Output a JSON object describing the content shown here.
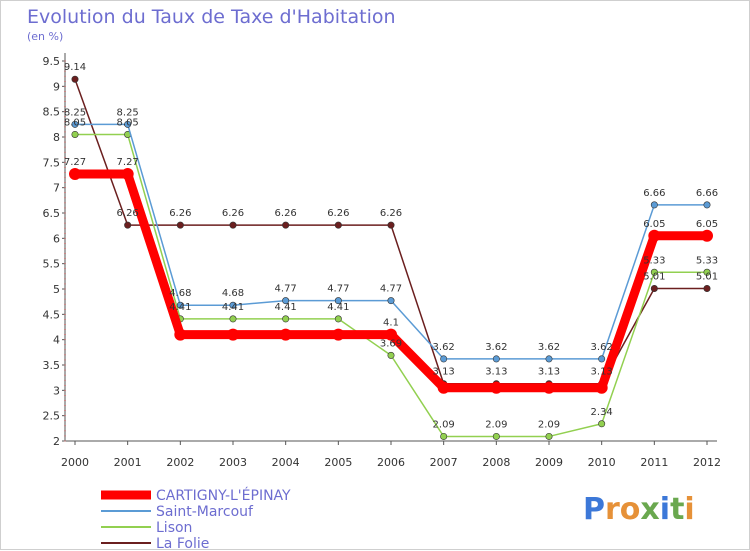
{
  "chart_data": {
    "type": "line",
    "title": "Evolution du Taux de Taxe d'Habitation",
    "subtitle": "(en %)",
    "x": [
      "2000",
      "2001",
      "2002",
      "2003",
      "2004",
      "2005",
      "2006",
      "2007",
      "2008",
      "2009",
      "2010",
      "2011",
      "2012"
    ],
    "y_ticks": [
      "2",
      "2.5",
      "3",
      "3.5",
      "4",
      "4.5",
      "5",
      "5.5",
      "6",
      "6.5",
      "7",
      "7.5",
      "8",
      "8.5",
      "9",
      "9.5"
    ],
    "ylim": [
      2,
      9.5
    ],
    "grid": false,
    "legend_position": "bottom-left",
    "series": [
      {
        "name": "CARTIGNY-L'ÉPINAY",
        "color": "#ff0000",
        "values": [
          7.27,
          7.27,
          4.1,
          4.1,
          4.1,
          4.1,
          4.1,
          3.05,
          3.05,
          3.05,
          3.05,
          6.05,
          6.05
        ],
        "labels": [
          "7.27",
          "7.27",
          "",
          "",
          "",
          "",
          "4.1",
          "",
          "",
          "",
          "",
          "6.05",
          "6.05"
        ]
      },
      {
        "name": "Saint-Marcouf",
        "color": "#5b9bd5",
        "values": [
          8.25,
          8.25,
          4.68,
          4.68,
          4.77,
          4.77,
          4.77,
          3.62,
          3.62,
          3.62,
          3.62,
          6.66,
          6.66
        ],
        "labels": [
          "8.25",
          "8.25",
          "4.68",
          "4.68",
          "4.77",
          "4.77",
          "4.77",
          "3.62",
          "3.62",
          "3.62",
          "3.62",
          "6.66",
          "6.66"
        ]
      },
      {
        "name": "Lison",
        "color": "#92d050",
        "values": [
          8.05,
          8.05,
          4.41,
          4.41,
          4.41,
          4.41,
          3.69,
          2.09,
          2.09,
          2.09,
          2.34,
          5.33,
          5.33
        ],
        "labels": [
          "8.05",
          "8.05",
          "4.41",
          "4.41",
          "4.41",
          "4.41",
          "3.69",
          "2.09",
          "2.09",
          "2.09",
          "2.34",
          "5.33",
          "5.33"
        ]
      },
      {
        "name": "La Folie",
        "color": "#6b1f1f",
        "values": [
          9.14,
          6.26,
          6.26,
          6.26,
          6.26,
          6.26,
          6.26,
          3.13,
          3.13,
          3.13,
          3.13,
          5.01,
          5.01
        ],
        "labels": [
          "9.14",
          "6.26",
          "6.26",
          "6.26",
          "6.26",
          "6.26",
          "6.26",
          "3.13",
          "3.13",
          "3.13",
          "3.13",
          "5.01",
          "5.01"
        ]
      }
    ]
  },
  "logo": {
    "text": "Proxiti"
  }
}
